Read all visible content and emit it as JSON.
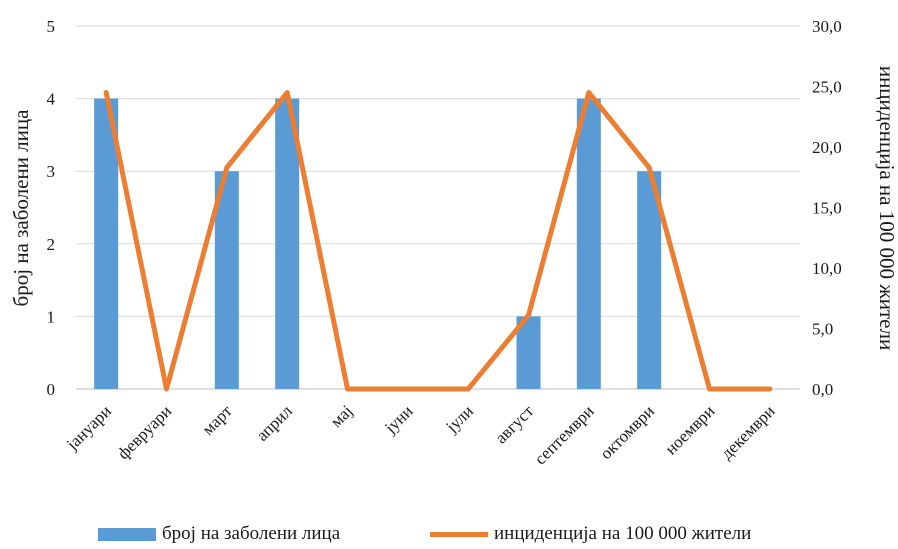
{
  "chart_data": {
    "type": "bar",
    "categories": [
      "јануари",
      "февруари",
      "март",
      "април",
      "мај",
      "јуни",
      "јули",
      "август",
      "септември",
      "октомври",
      "ноември",
      "декември"
    ],
    "series": [
      {
        "name": "број на заболени лица",
        "type": "bar",
        "axis": "left",
        "color": "#5B9BD5",
        "values": [
          4,
          0,
          3,
          4,
          0,
          0,
          0,
          1,
          4,
          3,
          0,
          0
        ]
      },
      {
        "name": "инциденција на 100 000 жители",
        "type": "line",
        "axis": "right",
        "color": "#ED7D31",
        "values": [
          24.5,
          0.0,
          18.3,
          24.5,
          0.0,
          0.0,
          0.0,
          6.1,
          24.5,
          18.3,
          0.0,
          0.0
        ]
      }
    ],
    "ylabel": "број на заболени лица",
    "y2label": "инциденција на 100 000 жители",
    "ylim": [
      0,
      5
    ],
    "y2lim": [
      0,
      30
    ],
    "yticks": [
      "0",
      "1",
      "2",
      "3",
      "4",
      "5"
    ],
    "y2ticks": [
      "0,0",
      "5,0",
      "10,0",
      "15,0",
      "20,0",
      "25,0",
      "30,0"
    ],
    "grid": true,
    "legend_position": "bottom"
  }
}
